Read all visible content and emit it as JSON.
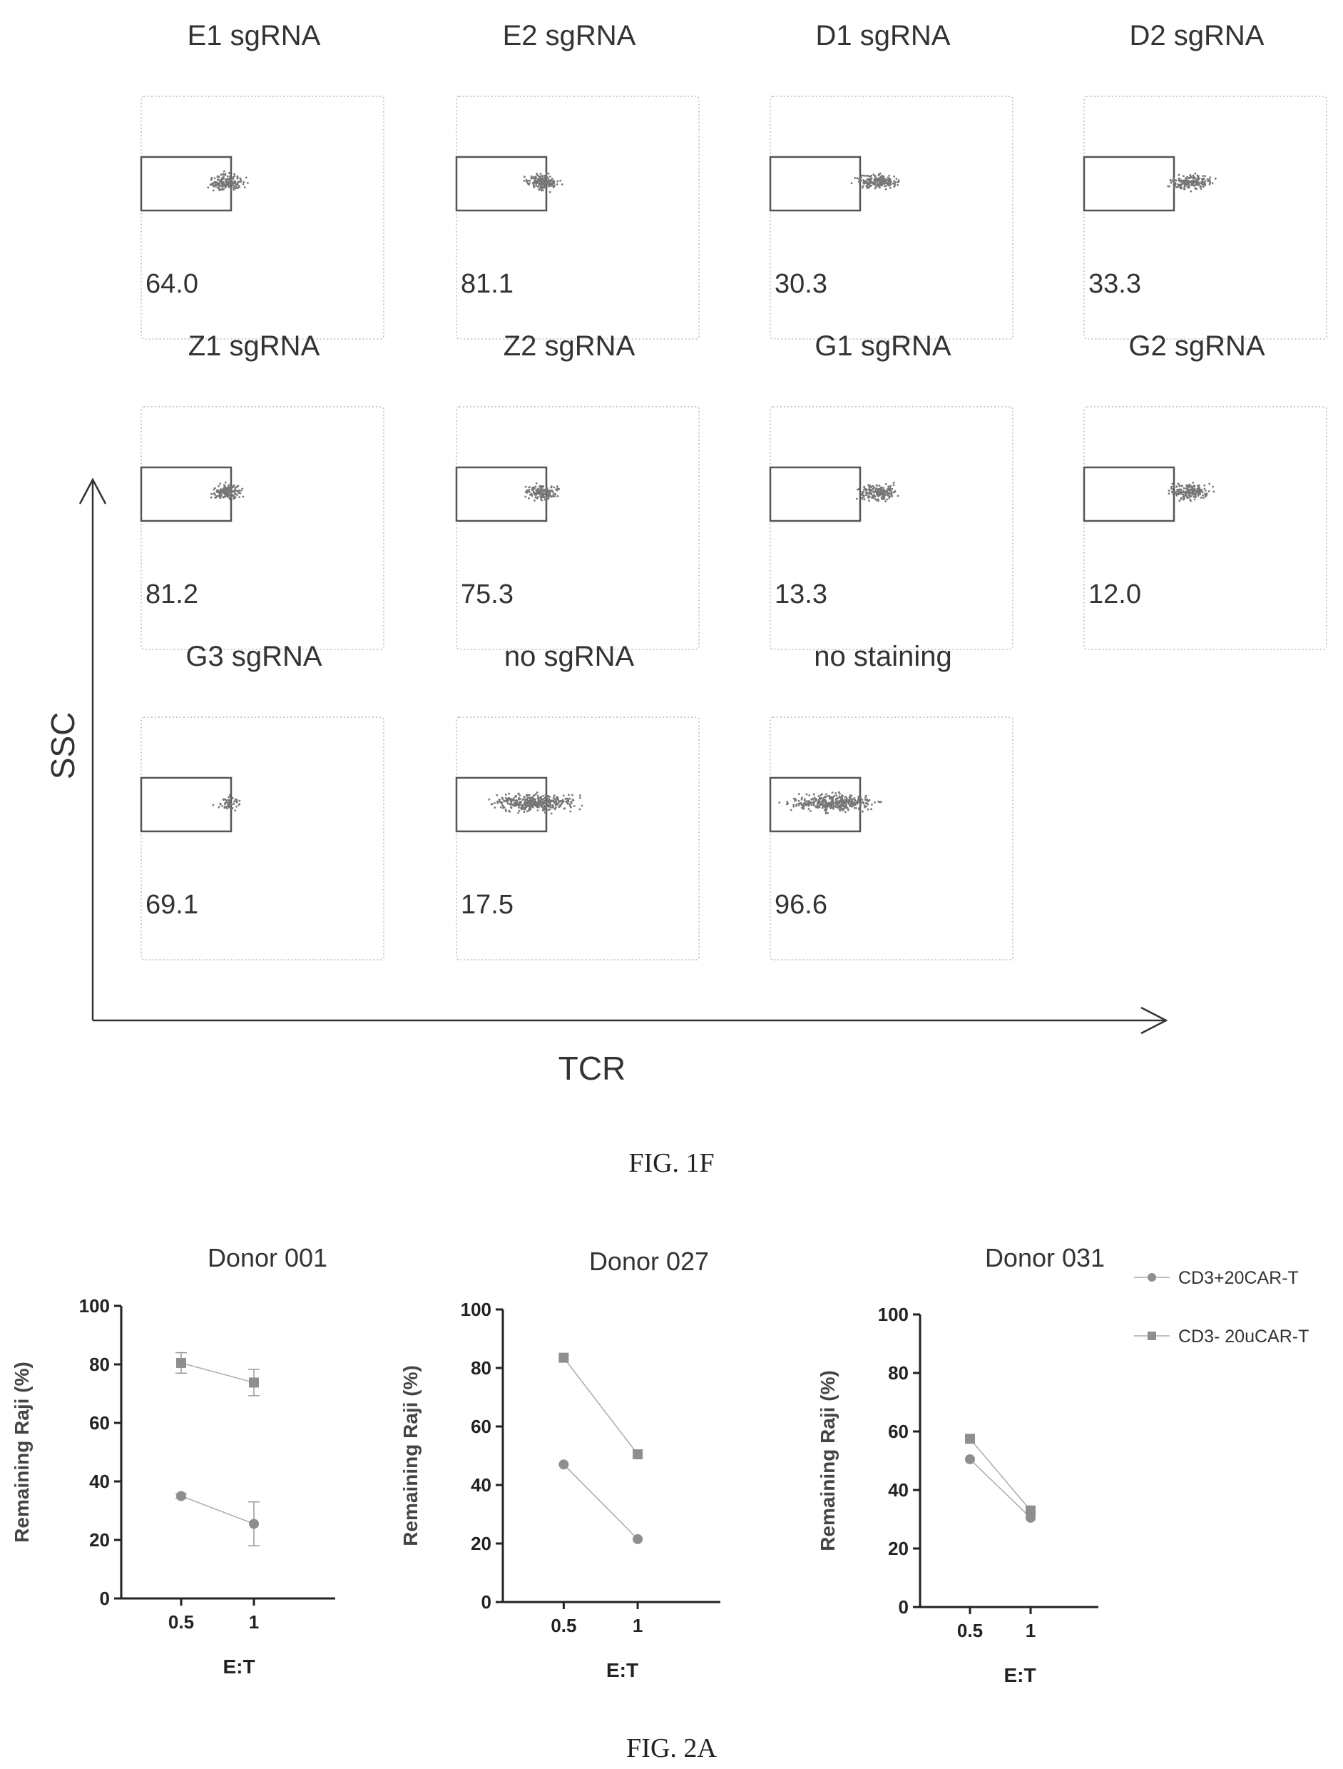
{
  "fig1f": {
    "caption": "FIG. 1F",
    "axis_y": "SSC",
    "axis_x": "TCR",
    "panels": [
      {
        "title": "E1 sgRNA",
        "value": "64.0",
        "cloud": "narrow"
      },
      {
        "title": "E2 sgRNA",
        "value": "81.1",
        "cloud": "narrow"
      },
      {
        "title": "D1 sgRNA",
        "value": "30.3",
        "cloud": "outside"
      },
      {
        "title": "D2 sgRNA",
        "value": "33.3",
        "cloud": "outside"
      },
      {
        "title": "Z1 sgRNA",
        "value": "81.2",
        "cloud": "narrow"
      },
      {
        "title": "Z2 sgRNA",
        "value": "75.3",
        "cloud": "narrow"
      },
      {
        "title": "G1 sgRNA",
        "value": "13.3",
        "cloud": "outside"
      },
      {
        "title": "G2 sgRNA",
        "value": "12.0",
        "cloud": "outside"
      },
      {
        "title": "G3 sgRNA",
        "value": "69.1",
        "cloud": "sparse"
      },
      {
        "title": "no sgRNA",
        "value": "17.5",
        "cloud": "wide"
      },
      {
        "title": "no staining",
        "value": "96.6",
        "cloud": "inside"
      }
    ]
  },
  "fig2a": {
    "caption": "FIG. 2A"
  },
  "colors": {
    "axis": "#333333",
    "panel_border": "#bbbbbb",
    "gate": "#555555",
    "dots": "#777777",
    "series_circle": "#8e8e8e",
    "series_square": "#8e8e8e",
    "line": "#aaaaaa"
  },
  "chart_data": [
    {
      "type": "line",
      "title": "Donor 001",
      "xlabel": "E:T",
      "ylabel": "Remaining Raji (%)",
      "x": [
        "0.5",
        "1"
      ],
      "ylim": [
        0,
        100
      ],
      "yticks": [
        0,
        20,
        40,
        60,
        80,
        100
      ],
      "series": [
        {
          "marker": "circle",
          "values": [
            35,
            25.5
          ],
          "errors": [
            0.8,
            7.5
          ]
        },
        {
          "marker": "square",
          "values": [
            80.5,
            73.8
          ],
          "errors": [
            3.5,
            4.5
          ]
        }
      ]
    },
    {
      "type": "line",
      "title": "Donor 027",
      "xlabel": "E:T",
      "ylabel": "Remaining Raji (%)",
      "x": [
        "0.5",
        "1"
      ],
      "ylim": [
        0,
        100
      ],
      "yticks": [
        0,
        20,
        40,
        60,
        80,
        100
      ],
      "series": [
        {
          "marker": "circle",
          "values": [
            47,
            21.5
          ],
          "errors": [
            0,
            0
          ]
        },
        {
          "marker": "square",
          "values": [
            83.5,
            50.5
          ],
          "errors": [
            0,
            0
          ]
        }
      ]
    },
    {
      "type": "line",
      "title": "Donor 031",
      "xlabel": "E:T",
      "ylabel": "Remaining Raji (%)",
      "x": [
        "0.5",
        "1"
      ],
      "ylim": [
        0,
        100
      ],
      "yticks": [
        0,
        20,
        40,
        60,
        80,
        100
      ],
      "legend": "top-right",
      "legend_entries": [
        {
          "marker": "circle",
          "label": "CD3+20CAR-T"
        },
        {
          "marker": "square",
          "label": "CD3- 20uCAR-T"
        }
      ],
      "series": [
        {
          "marker": "circle",
          "values": [
            50.5,
            30.5
          ],
          "errors": [
            0,
            0
          ]
        },
        {
          "marker": "square",
          "values": [
            57.5,
            33
          ],
          "errors": [
            0,
            0
          ]
        }
      ]
    }
  ]
}
